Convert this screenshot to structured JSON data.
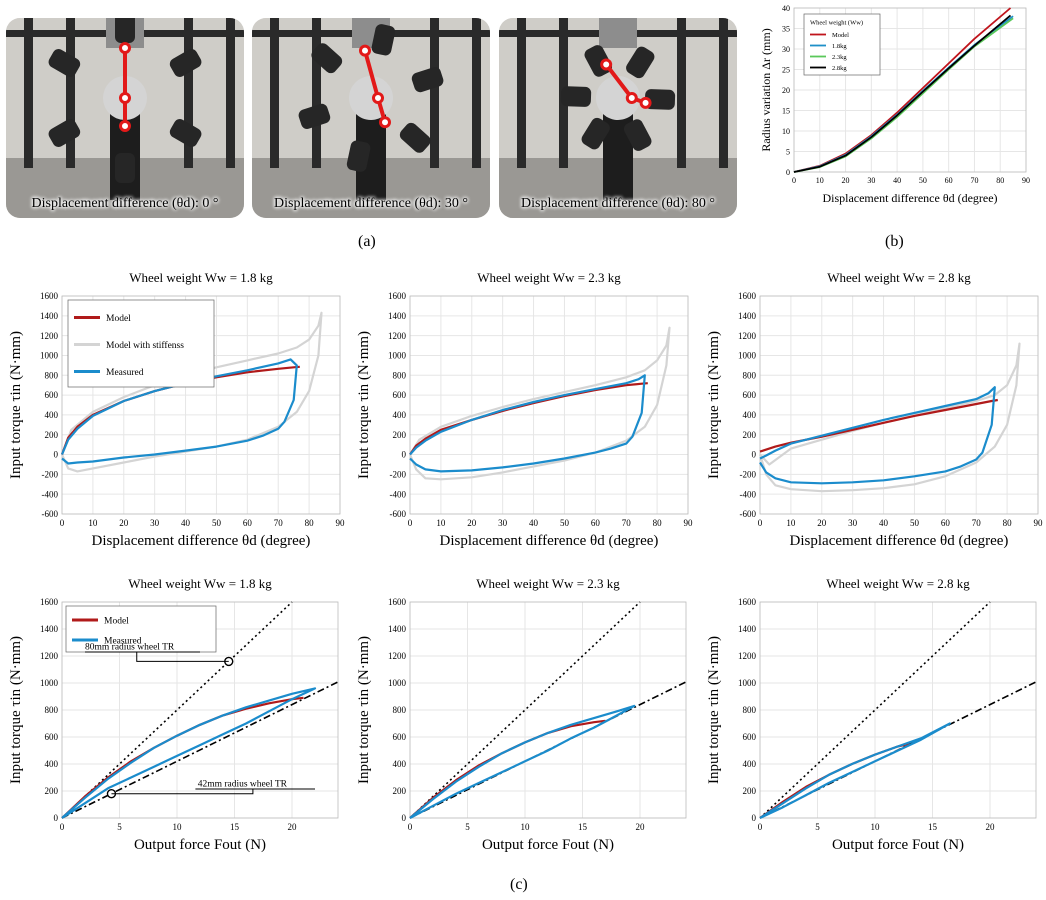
{
  "labels": {
    "a": "(a)",
    "b": "(b)",
    "c": "(c)"
  },
  "photos": [
    {
      "caption": "Displacement difference (θd): 0 °",
      "angle_deg": 0
    },
    {
      "caption": "Displacement difference (θd): 30 °",
      "angle_deg": 30
    },
    {
      "caption": "Displacement difference (θd): 80 °",
      "angle_deg": 80
    }
  ],
  "chart_data": [
    {
      "id": "b",
      "type": "line",
      "xlabel": "Displacement difference θd (degree)",
      "ylabel": "Radius variation Δr (mm)",
      "xlim": [
        0,
        90
      ],
      "ylim": [
        0,
        40
      ],
      "xticks": [
        0,
        10,
        20,
        30,
        40,
        50,
        60,
        70,
        80,
        90
      ],
      "yticks": [
        0,
        5,
        10,
        15,
        20,
        25,
        30,
        35,
        40
      ],
      "grid": true,
      "legend": {
        "title": "Wheel weight (Ww)",
        "position": "top-left"
      },
      "series": [
        {
          "name": "Model",
          "color": "#c0141c",
          "x": [
            0,
            10,
            20,
            30,
            40,
            50,
            60,
            70,
            84
          ],
          "y": [
            0,
            1.5,
            4.5,
            9,
            14.5,
            20.5,
            26.5,
            32.5,
            40
          ]
        },
        {
          "name": "1.8kg",
          "color": "#1e90c8",
          "x": [
            0,
            10,
            20,
            30,
            40,
            50,
            60,
            70,
            85
          ],
          "y": [
            0,
            1.4,
            4.2,
            8.7,
            14,
            19.8,
            25.5,
            31,
            38
          ]
        },
        {
          "name": "2.3kg",
          "color": "#5ac85a",
          "x": [
            0,
            10,
            20,
            30,
            40,
            50,
            60,
            70,
            85
          ],
          "y": [
            0,
            1.2,
            3.8,
            8.2,
            13.4,
            19.2,
            25,
            30.6,
            37.5
          ]
        },
        {
          "name": "2.8kg",
          "color": "#000000",
          "x": [
            0,
            10,
            20,
            30,
            40,
            50,
            60,
            70,
            84
          ],
          "y": [
            0,
            1.3,
            4.0,
            8.5,
            13.8,
            19.6,
            25.3,
            30.8,
            38.2
          ]
        }
      ]
    },
    {
      "id": "c1",
      "type": "line",
      "title": "Wheel weight Ww = 1.8 kg",
      "xlabel": "Displacement difference θd (degree)",
      "ylabel": "Input torque τin (N·mm)",
      "xlim": [
        0,
        90
      ],
      "ylim": [
        -600,
        1600
      ],
      "xticks": [
        0,
        10,
        20,
        30,
        40,
        50,
        60,
        70,
        80,
        90
      ],
      "yticks": [
        -600,
        -400,
        -200,
        0,
        200,
        400,
        600,
        800,
        1000,
        1200,
        1400,
        1600
      ],
      "grid": true,
      "legend": {
        "position": "top-left",
        "entries": [
          "Model",
          "Model with stiffenss",
          "Measured"
        ]
      },
      "series": [
        {
          "name": "Model with stiffenss",
          "color": "#d4d4d4",
          "x": [
            0,
            3,
            10,
            20,
            30,
            40,
            50,
            60,
            70,
            76,
            80,
            83,
            84,
            83,
            80,
            76,
            70,
            60,
            50,
            40,
            30,
            20,
            10,
            5,
            2,
            0
          ],
          "y": [
            0,
            250,
            430,
            580,
            700,
            800,
            880,
            950,
            1020,
            1080,
            1160,
            1300,
            1430,
            1000,
            640,
            430,
            280,
            150,
            80,
            30,
            -20,
            -80,
            -140,
            -170,
            -140,
            0
          ]
        },
        {
          "name": "Model",
          "color": "#b01a1a",
          "x": [
            0,
            2,
            5,
            10,
            20,
            30,
            40,
            50,
            60,
            70,
            75,
            77
          ],
          "y": [
            0,
            170,
            280,
            400,
            540,
            640,
            720,
            780,
            830,
            865,
            880,
            885
          ]
        },
        {
          "name": "Measured",
          "color": "#1b8ccc",
          "x": [
            0,
            2,
            5,
            10,
            20,
            30,
            40,
            50,
            60,
            70,
            74,
            76,
            75,
            72,
            70,
            65,
            60,
            50,
            40,
            30,
            20,
            10,
            5,
            2,
            0
          ],
          "y": [
            0,
            150,
            260,
            390,
            540,
            640,
            720,
            790,
            850,
            920,
            960,
            900,
            550,
            330,
            260,
            190,
            140,
            80,
            40,
            0,
            -30,
            -70,
            -80,
            -90,
            -40
          ]
        }
      ]
    },
    {
      "id": "c2",
      "type": "line",
      "title": "Wheel weight Ww = 2.3 kg",
      "xlabel": "Displacement difference θd (degree)",
      "ylabel": "Input torque τin (N·mm)",
      "xlim": [
        0,
        90
      ],
      "ylim": [
        -600,
        1600
      ],
      "xticks": [
        0,
        10,
        20,
        30,
        40,
        50,
        60,
        70,
        80,
        90
      ],
      "yticks": [
        -600,
        -400,
        -200,
        0,
        200,
        400,
        600,
        800,
        1000,
        1200,
        1400,
        1600
      ],
      "grid": true,
      "series": [
        {
          "name": "Model with stiffenss",
          "color": "#d4d4d4",
          "x": [
            0,
            3,
            10,
            20,
            30,
            40,
            50,
            60,
            70,
            76,
            80,
            83,
            84,
            83,
            80,
            76,
            70,
            60,
            50,
            40,
            30,
            20,
            10,
            5,
            2,
            0
          ],
          "y": [
            0,
            150,
            280,
            390,
            480,
            560,
            630,
            700,
            780,
            850,
            950,
            1100,
            1280,
            900,
            500,
            280,
            140,
            20,
            -60,
            -120,
            -180,
            -230,
            -250,
            -240,
            -150,
            0
          ]
        },
        {
          "name": "Model",
          "color": "#b01a1a",
          "x": [
            0,
            2,
            5,
            10,
            20,
            30,
            40,
            50,
            60,
            70,
            75,
            77
          ],
          "y": [
            0,
            90,
            160,
            250,
            350,
            440,
            520,
            590,
            650,
            700,
            715,
            720
          ]
        },
        {
          "name": "Measured",
          "color": "#1b8ccc",
          "x": [
            0,
            2,
            5,
            10,
            20,
            30,
            40,
            50,
            60,
            70,
            74,
            76,
            75,
            72,
            70,
            65,
            60,
            50,
            40,
            30,
            20,
            10,
            5,
            2,
            0
          ],
          "y": [
            0,
            70,
            140,
            230,
            350,
            450,
            530,
            600,
            660,
            720,
            760,
            800,
            420,
            180,
            110,
            60,
            20,
            -40,
            -90,
            -130,
            -160,
            -170,
            -150,
            -100,
            -40
          ]
        }
      ]
    },
    {
      "id": "c3",
      "type": "line",
      "title": "Wheel weight Ww = 2.8 kg",
      "xlabel": "Displacement difference θd (degree)",
      "ylabel": "Input torque τin (N·mm)",
      "xlim": [
        0,
        90
      ],
      "ylim": [
        -600,
        1600
      ],
      "xticks": [
        0,
        10,
        20,
        30,
        40,
        50,
        60,
        70,
        80,
        90
      ],
      "yticks": [
        -600,
        -400,
        -200,
        0,
        200,
        400,
        600,
        800,
        1000,
        1200,
        1400,
        1600
      ],
      "grid": true,
      "series": [
        {
          "name": "Model with stiffenss",
          "color": "#d4d4d4",
          "x": [
            0,
            3,
            10,
            20,
            30,
            40,
            50,
            60,
            70,
            76,
            80,
            83,
            84,
            83,
            80,
            76,
            70,
            60,
            50,
            40,
            30,
            20,
            10,
            5,
            2,
            0
          ],
          "y": [
            0,
            -100,
            60,
            150,
            240,
            320,
            400,
            470,
            540,
            600,
            700,
            900,
            1120,
            700,
            300,
            80,
            -80,
            -220,
            -300,
            -340,
            -360,
            -370,
            -350,
            -310,
            -200,
            0
          ]
        },
        {
          "name": "Model",
          "color": "#b01a1a",
          "x": [
            0,
            2,
            5,
            10,
            20,
            30,
            40,
            50,
            60,
            70,
            75,
            77
          ],
          "y": [
            30,
            50,
            80,
            120,
            180,
            250,
            320,
            390,
            450,
            510,
            540,
            550
          ]
        },
        {
          "name": "Measured",
          "color": "#1b8ccc",
          "x": [
            0,
            2,
            5,
            10,
            20,
            30,
            40,
            50,
            60,
            70,
            74,
            76,
            75,
            72,
            70,
            65,
            60,
            50,
            40,
            30,
            20,
            10,
            5,
            2,
            0
          ],
          "y": [
            -40,
            -10,
            40,
            110,
            190,
            270,
            350,
            420,
            490,
            560,
            620,
            680,
            300,
            20,
            -50,
            -120,
            -170,
            -220,
            -260,
            -280,
            -290,
            -280,
            -240,
            -180,
            -80
          ]
        }
      ]
    },
    {
      "id": "c4",
      "type": "line",
      "title": "Wheel weight Ww = 1.8 kg",
      "xlabel": "Output force Fout (N)",
      "ylabel": "Input torque τin (N·mm)",
      "xlim": [
        0,
        24
      ],
      "ylim": [
        0,
        1600
      ],
      "xticks": [
        0,
        5,
        10,
        15,
        20
      ],
      "yticks": [
        0,
        200,
        400,
        600,
        800,
        1000,
        1200,
        1400,
        1600
      ],
      "grid": true,
      "legend": {
        "position": "top-left",
        "entries": [
          "Model",
          "Measured"
        ]
      },
      "annotations": [
        "80mm radius wheel TR",
        "42mm radius wheel TR"
      ],
      "series": [
        {
          "name": "80mm radius wheel TR",
          "color": "#000000",
          "dash": "dotted",
          "x": [
            0,
            20
          ],
          "y": [
            0,
            1600
          ]
        },
        {
          "name": "42mm radius wheel TR",
          "color": "#000000",
          "dash": "dashdot",
          "x": [
            0,
            24
          ],
          "y": [
            0,
            1008
          ]
        },
        {
          "name": "Model",
          "color": "#b01a1a",
          "x": [
            0,
            2,
            4,
            6,
            8,
            10,
            12,
            14,
            16,
            18,
            20,
            21
          ],
          "y": [
            0,
            160,
            300,
            420,
            520,
            610,
            690,
            760,
            810,
            850,
            880,
            890
          ]
        },
        {
          "name": "Measured",
          "color": "#1b8ccc",
          "x": [
            0,
            2,
            4,
            6,
            8,
            10,
            12,
            14,
            16,
            18,
            20,
            22,
            20,
            18,
            16,
            14,
            12,
            10,
            8,
            6,
            4,
            2,
            0
          ],
          "y": [
            0,
            150,
            290,
            410,
            520,
            610,
            690,
            760,
            820,
            870,
            920,
            960,
            880,
            790,
            700,
            620,
            540,
            460,
            380,
            300,
            220,
            110,
            0
          ]
        }
      ]
    },
    {
      "id": "c5",
      "type": "line",
      "title": "Wheel weight Ww = 2.3 kg",
      "xlabel": "Output force Fout (N)",
      "ylabel": "Input torque τin (N·mm)",
      "xlim": [
        0,
        24
      ],
      "ylim": [
        0,
        1600
      ],
      "xticks": [
        0,
        5,
        10,
        15,
        20
      ],
      "yticks": [
        0,
        200,
        400,
        600,
        800,
        1000,
        1200,
        1400,
        1600
      ],
      "grid": true,
      "series": [
        {
          "name": "80mm radius wheel TR",
          "color": "#000000",
          "dash": "dotted",
          "x": [
            0,
            20
          ],
          "y": [
            0,
            1600
          ]
        },
        {
          "name": "42mm radius wheel TR",
          "color": "#000000",
          "dash": "dashdot",
          "x": [
            0,
            24
          ],
          "y": [
            0,
            1008
          ]
        },
        {
          "name": "Model",
          "color": "#b01a1a",
          "x": [
            0,
            2,
            4,
            6,
            8,
            10,
            12,
            14,
            16,
            17
          ],
          "y": [
            0,
            150,
            280,
            390,
            480,
            560,
            630,
            680,
            710,
            720
          ]
        },
        {
          "name": "Measured",
          "color": "#1b8ccc",
          "x": [
            0,
            2,
            4,
            6,
            8,
            10,
            12,
            14,
            16,
            18,
            19.5,
            18,
            16,
            14,
            12,
            10,
            8,
            6,
            4,
            2,
            0
          ],
          "y": [
            0,
            140,
            270,
            380,
            480,
            560,
            630,
            690,
            740,
            790,
            830,
            760,
            670,
            590,
            500,
            420,
            340,
            260,
            180,
            90,
            0
          ]
        }
      ]
    },
    {
      "id": "c6",
      "type": "line",
      "title": "Wheel weight Ww = 2.8 kg",
      "xlabel": "Output force Fout (N)",
      "ylabel": "Input torque τin (N·mm)",
      "xlim": [
        0,
        24
      ],
      "ylim": [
        0,
        1600
      ],
      "xticks": [
        0,
        5,
        10,
        15,
        20
      ],
      "yticks": [
        0,
        200,
        400,
        600,
        800,
        1000,
        1200,
        1400,
        1600
      ],
      "grid": true,
      "series": [
        {
          "name": "80mm radius wheel TR",
          "color": "#000000",
          "dash": "dotted",
          "x": [
            0,
            20
          ],
          "y": [
            0,
            1600
          ]
        },
        {
          "name": "42mm radius wheel TR",
          "color": "#000000",
          "dash": "dashdot",
          "x": [
            0,
            24
          ],
          "y": [
            0,
            1008
          ]
        },
        {
          "name": "Model",
          "color": "#b01a1a",
          "x": [
            0,
            2,
            4,
            6,
            8,
            10,
            12,
            13
          ],
          "y": [
            0,
            120,
            230,
            320,
            400,
            470,
            530,
            550
          ]
        },
        {
          "name": "Measured",
          "color": "#1b8ccc",
          "x": [
            0,
            2,
            4,
            6,
            8,
            10,
            12,
            14,
            16.5,
            14,
            12,
            10,
            8,
            6,
            4,
            2,
            0
          ],
          "y": [
            0,
            110,
            220,
            320,
            400,
            470,
            530,
            590,
            700,
            580,
            500,
            420,
            340,
            260,
            170,
            80,
            0
          ]
        }
      ]
    }
  ]
}
